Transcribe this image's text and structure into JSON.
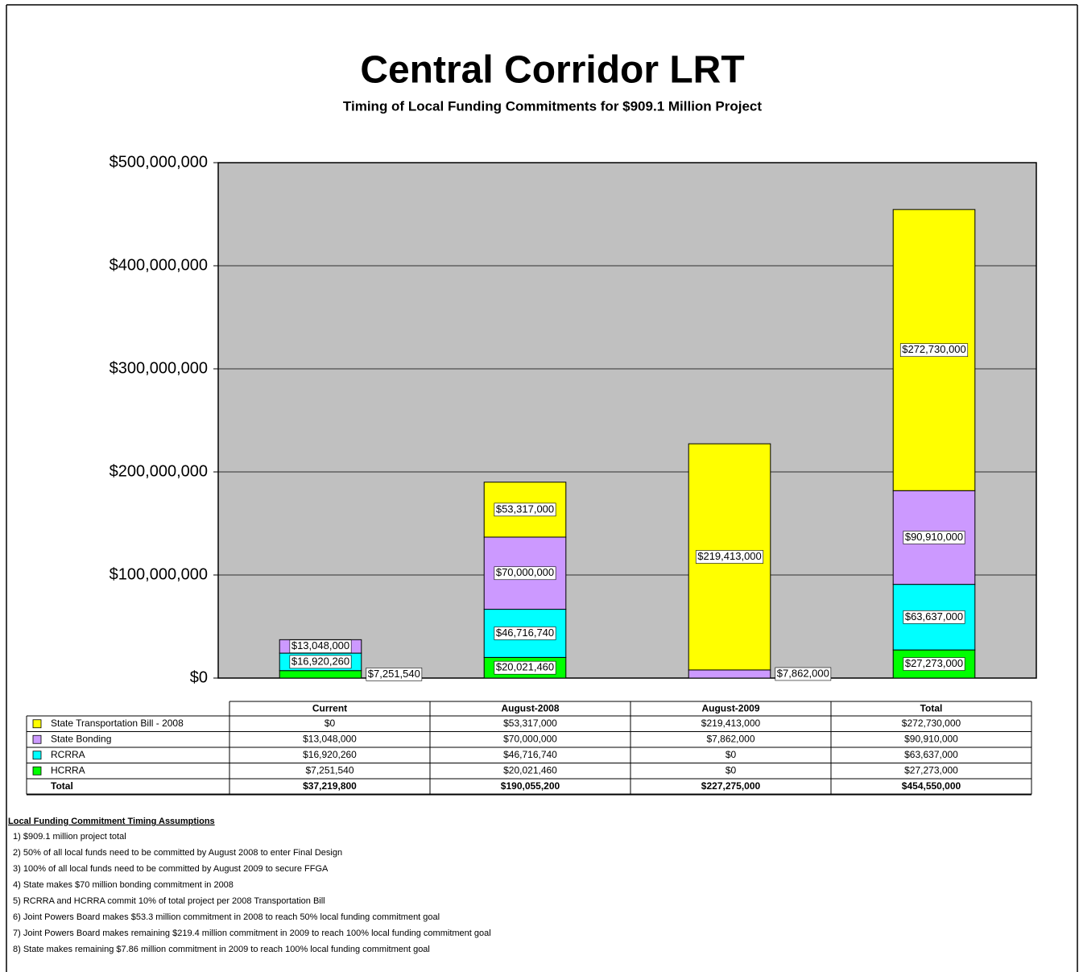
{
  "chart_data": {
    "type": "bar",
    "stacked": true,
    "title": "Central Corridor LRT",
    "subtitle": "Timing of Local Funding Commitments for $909.1 Million Project",
    "categories": [
      "Current",
      "August-2008",
      "August-2009",
      "Total"
    ],
    "series": [
      {
        "name": "HCRRA",
        "color": "#00ff00",
        "values": [
          7251540,
          20021460,
          0,
          27273000
        ],
        "value_labels": [
          "$7,251,540",
          "$20,021,460",
          "$0",
          "$27,273,000"
        ]
      },
      {
        "name": "RCRRA",
        "color": "#00ffff",
        "values": [
          16920260,
          46716740,
          0,
          63637000
        ],
        "value_labels": [
          "$16,920,260",
          "$46,716,740",
          "$0",
          "$63,637,000"
        ]
      },
      {
        "name": "State Bonding",
        "color": "#cc99ff",
        "values": [
          13048000,
          70000000,
          7862000,
          90910000
        ],
        "value_labels": [
          "$13,048,000",
          "$70,000,000",
          "$7,862,000",
          "$90,910,000"
        ]
      },
      {
        "name": "State Transportation Bill - 2008",
        "color": "#ffff00",
        "values": [
          0,
          53317000,
          219413000,
          272730000
        ],
        "value_labels": [
          "$0",
          "$53,317,000",
          "$219,413,000",
          "$272,730,000"
        ]
      }
    ],
    "ylim": [
      0,
      500000000
    ],
    "yticks": [
      {
        "value": 0,
        "label": "$0"
      },
      {
        "value": 100000000,
        "label": "$100,000,000"
      },
      {
        "value": 200000000,
        "label": "$200,000,000"
      },
      {
        "value": 300000000,
        "label": "$300,000,000"
      },
      {
        "value": 400000000,
        "label": "$400,000,000"
      },
      {
        "value": 500000000,
        "label": "$500,000,000"
      }
    ],
    "grid": true,
    "plot_background": "#c0c0c0",
    "table": {
      "total_label": "Total",
      "totals": [
        "$37,219,800",
        "$190,055,200",
        "$227,275,000",
        "$454,550,000"
      ]
    }
  },
  "notes": {
    "title": "Local Funding Commitment Timing Assumptions",
    "items": [
      "1) $909.1 million project total",
      "2) 50% of all local funds need to be committed by August 2008 to enter Final Design",
      "3) 100% of all local funds need to be committed by August 2009 to secure FFGA",
      "4) State makes $70 million bonding commitment in 2008",
      "5) RCRRA and HCRRA commit 10% of total project per 2008 Transportation Bill",
      "6) Joint Powers Board makes $53.3 million commitment in 2008 to reach 50% local funding commitment goal",
      "7) Joint Powers Board makes remaining $219.4 million commitment in 2009 to reach 100% local funding commitment goal",
      "8) State makes remaining $7.86 million commitment in 2009 to reach 100% local funding commitment goal"
    ]
  }
}
